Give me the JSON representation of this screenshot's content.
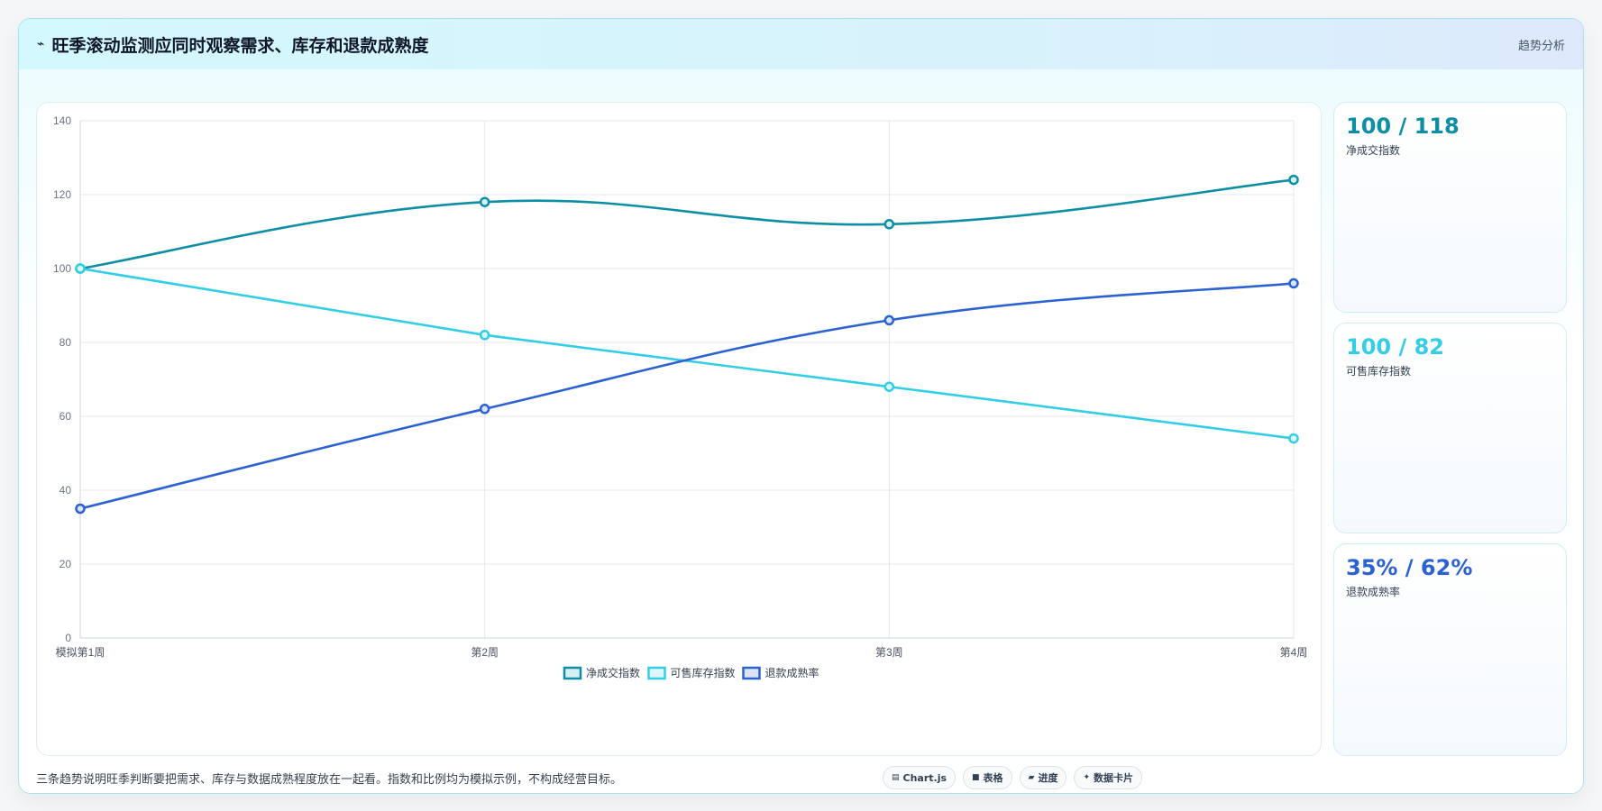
{
  "header": {
    "icon": "trend-line-icon",
    "title": "旺季滚动监测应同时观察需求、库存和退款成熟度",
    "right_label": "趋势分析"
  },
  "chart_data": {
    "type": "line",
    "x": [
      "模拟第1周",
      "第2周",
      "第3周",
      "第4周"
    ],
    "ylim": [
      0,
      140
    ],
    "yticks": [
      0,
      20,
      40,
      60,
      80,
      100,
      120,
      140
    ],
    "grid": true,
    "legend_position": "bottom-center",
    "series": [
      {
        "name": "净成交指数",
        "values": [
          100,
          118,
          112,
          124
        ],
        "color": "#0e8ea5",
        "fill": "#d6f0f4",
        "smooth": true
      },
      {
        "name": "可售库存指数",
        "values": [
          100,
          82,
          68,
          54
        ],
        "color": "#33cde6",
        "fill": "#dff7fb",
        "smooth": false
      },
      {
        "name": "退款成熟率",
        "values": [
          35,
          62,
          86,
          96
        ],
        "color": "#2b61d1",
        "fill": "#dbe5f8",
        "smooth": true
      }
    ]
  },
  "kpis": [
    {
      "value": "100 / 118",
      "label": "净成交指数",
      "color": "#0e8ea5"
    },
    {
      "value": "100 / 82",
      "label": "可售库存指数",
      "color": "#33cde6"
    },
    {
      "value": "35% / 62%",
      "label": "退款成熟率",
      "color": "#2b61d1"
    }
  ],
  "footnote": "三条趋势说明旺季判断要把需求、库存与数据成熟程度放在一起看。指数和比例均为模拟示例，不构成经营目标。",
  "badges": [
    {
      "icon": "chart-icon",
      "glyph": "▤",
      "label": "Chart.js"
    },
    {
      "icon": "table-icon",
      "glyph": "■",
      "label": "表格"
    },
    {
      "icon": "progress-icon",
      "glyph": "▰",
      "label": "进度"
    },
    {
      "icon": "sparkle-icon",
      "glyph": "✦",
      "label": "数据卡片"
    }
  ]
}
